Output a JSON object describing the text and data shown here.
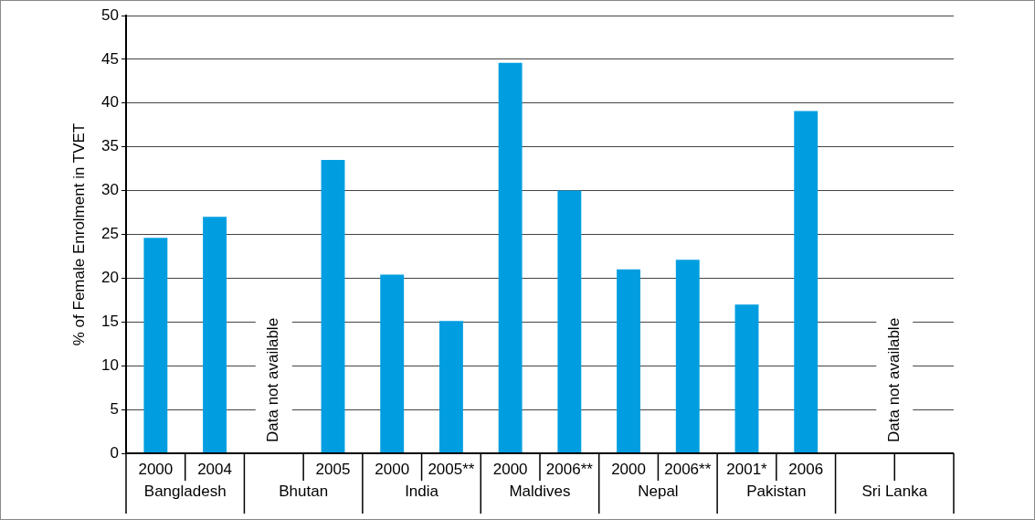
{
  "chart_data": {
    "type": "bar",
    "ylabel": "% of Female Enrolment in TVET",
    "categories": [
      "2000",
      "2004",
      null,
      "2005",
      "2000",
      "2005**",
      "2000",
      "2006**",
      "2000",
      "2006**",
      "2001*",
      "2006",
      null,
      null
    ],
    "values": [
      24.6,
      27.0,
      null,
      33.5,
      20.4,
      15.1,
      44.6,
      30.0,
      21.0,
      22.1,
      17.0,
      39.1,
      null,
      null
    ],
    "color": "#009ee0",
    "ylim": [
      0,
      50
    ],
    "yticks": [
      0,
      5,
      10,
      15,
      20,
      25,
      30,
      35,
      40,
      45,
      50
    ],
    "grid": "y",
    "legend": false,
    "annotations": [
      "Bangladesh",
      "Bhutan",
      "India",
      "Maldives",
      "Nepal",
      "Pakistan",
      "Sri Lanka",
      "Data not available",
      "Data not available"
    ]
  }
}
